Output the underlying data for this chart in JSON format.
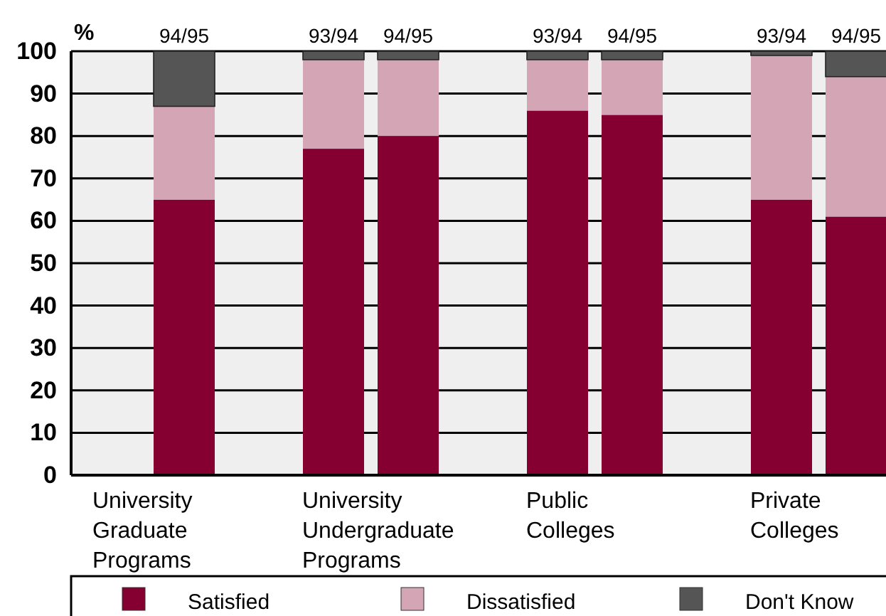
{
  "chart_data": {
    "type": "bar",
    "stacked": true,
    "ylabel": "%",
    "categories": [
      null,
      "94/95",
      "93/94",
      "94/95",
      "93/94",
      "94/95",
      "93/94",
      "94/95"
    ],
    "series": [
      {
        "name": "Satisfied",
        "color": "#850030",
        "values": [
          null,
          65,
          77,
          80,
          86,
          85,
          65,
          61
        ]
      },
      {
        "name": "Dissatisfied",
        "color": "#d4a5b5",
        "values": [
          null,
          22,
          21,
          18,
          12,
          13,
          34,
          33
        ]
      },
      {
        "name": "Don't Know",
        "color": "#555555",
        "values": [
          null,
          13,
          2,
          2,
          2,
          2,
          1,
          6
        ]
      }
    ],
    "ylim": [
      0,
      100
    ],
    "yticks": [
      0,
      10,
      20,
      30,
      40,
      50,
      60,
      70,
      80,
      90,
      100
    ],
    "grid": "y",
    "legend": "bottom",
    "annotations": [
      "University Graduate Programs",
      "University Undergraduate Programs",
      "Public Colleges",
      "Private Colleges"
    ]
  }
}
